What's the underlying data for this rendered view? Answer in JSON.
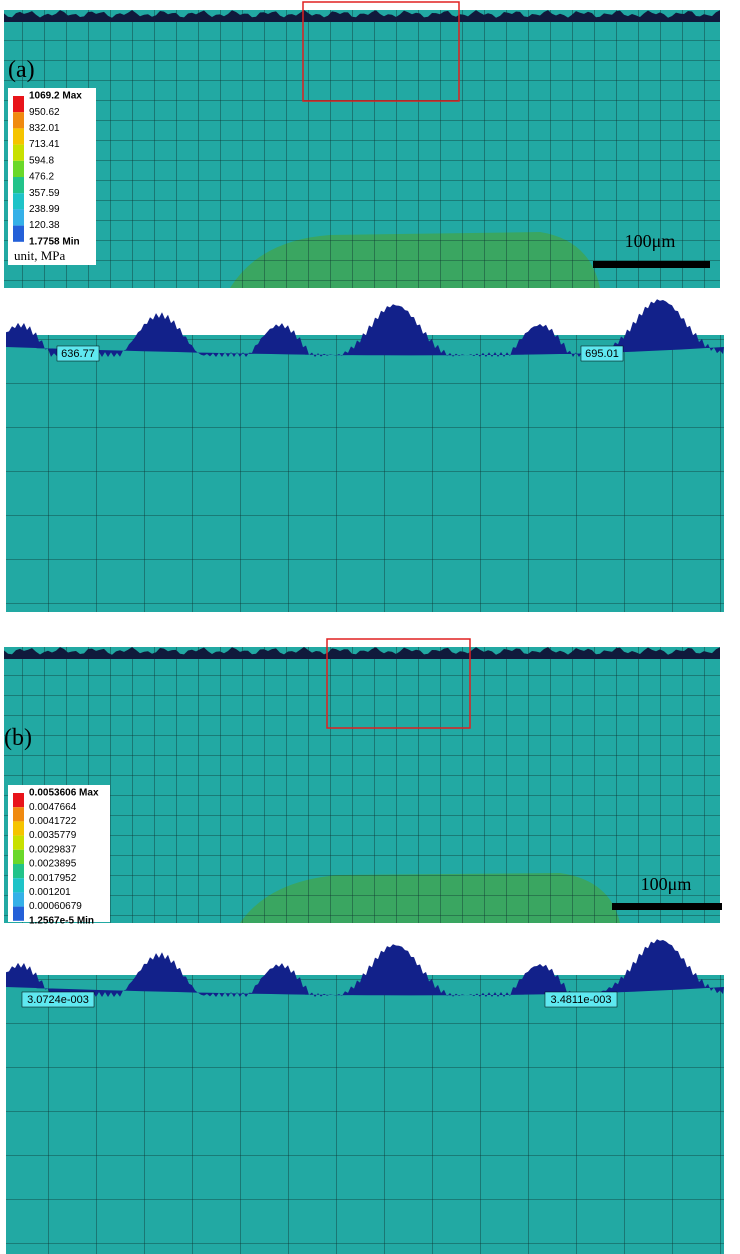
{
  "panels": [
    {
      "label": "(a)",
      "legend": {
        "entries": [
          "1069.2 Max",
          "950.62",
          "832.01",
          "713.41",
          "594.8",
          "476.2",
          "357.59",
          "238.99",
          "120.38",
          "1.7758 Min"
        ],
        "unit": "unit, MPa"
      },
      "scale_bar": "100μm"
    },
    {
      "callouts": [
        "636.77",
        "695.01"
      ]
    },
    {
      "label": "(b)",
      "legend": {
        "entries": [
          "0.0053606 Max",
          "0.0047664",
          "0.0041722",
          "0.0035779",
          "0.0029837",
          "0.0023895",
          "0.0017952",
          "0.001201",
          "0.00060679",
          "1.2567e-5 Min"
        ]
      },
      "scale_bar": "100μm"
    },
    {
      "callouts": [
        "3.0724e-003",
        "3.4811e-003"
      ]
    }
  ]
}
